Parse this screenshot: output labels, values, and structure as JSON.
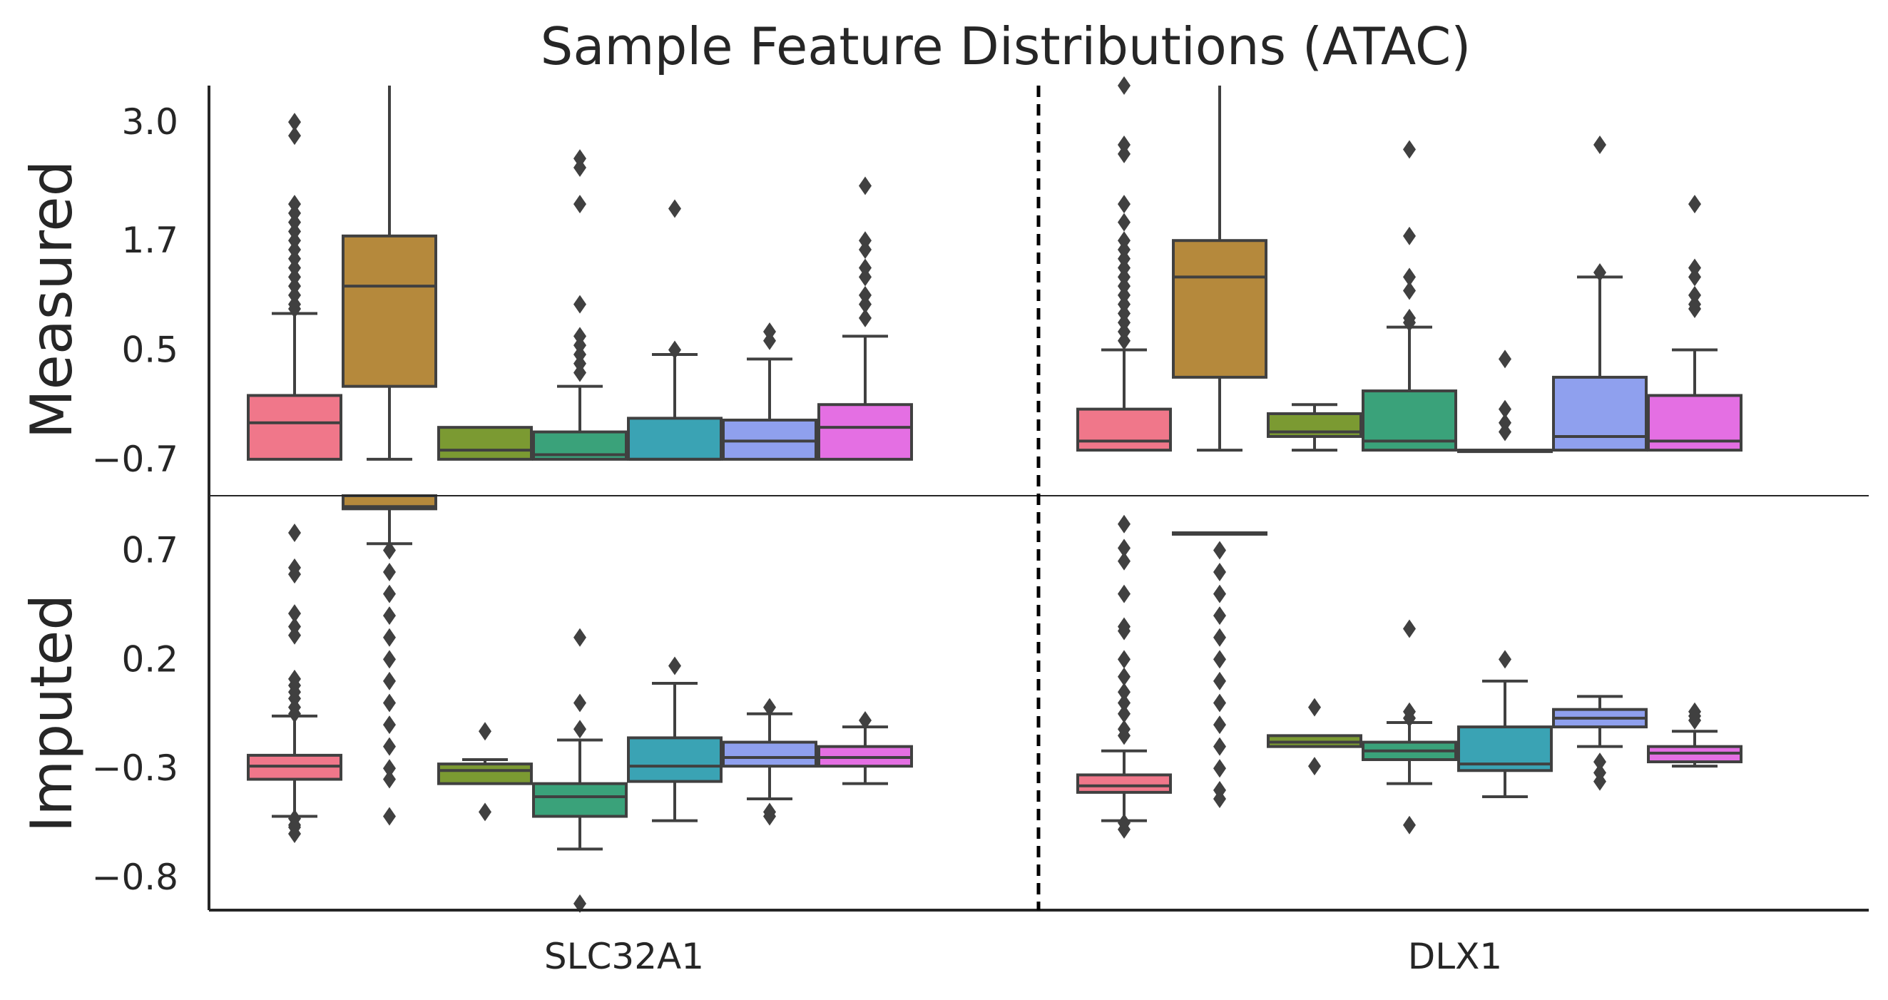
{
  "chart_data": {
    "type": "box",
    "title": "Sample Feature Distributions (ATAC)",
    "xlabel": "",
    "ylabel": "",
    "categories": [
      "SLC32A1",
      "DLX1"
    ],
    "series_colors": [
      "#f0778a",
      "#b5893c",
      "#7b9a32",
      "#3aa27a",
      "#3aa3b4",
      "#8fa0ee",
      "#e46fe3"
    ],
    "panels": [
      {
        "name": "Measured",
        "ylim": [
          -1.1,
          3.4
        ],
        "yticks": [
          "3.0",
          "1.7",
          "0.5",
          "−0.7"
        ],
        "ytick_values": [
          3.0,
          1.7,
          0.5,
          -0.7
        ],
        "groups": [
          [
            {
              "q1": -0.7,
              "median": -0.3,
              "q3": 0.0,
              "whisker_low": -0.7,
              "whisker_high": 0.9,
              "outliers": [
                2.85,
                3.0,
                2.1,
                2.0,
                1.9,
                1.8,
                1.7,
                1.6,
                1.5,
                1.4,
                1.3,
                1.2,
                1.1,
                1.0,
                0.95
              ]
            },
            {
              "q1": 0.1,
              "median": 1.2,
              "q3": 1.75,
              "whisker_low": -0.7,
              "whisker_high": 3.4,
              "outliers": []
            },
            {
              "q1": -0.7,
              "median": -0.6,
              "q3": -0.35,
              "whisker_low": -0.7,
              "whisker_high": -0.35,
              "outliers": []
            },
            {
              "q1": -0.7,
              "median": -0.65,
              "q3": -0.4,
              "whisker_low": -0.7,
              "whisker_high": 0.1,
              "outliers": [
                2.6,
                2.5,
                2.1,
                1.0,
                0.65,
                0.55,
                0.45,
                0.35,
                0.25
              ]
            },
            {
              "q1": -0.7,
              "median": -0.7,
              "q3": -0.25,
              "whisker_low": -0.7,
              "whisker_high": 0.45,
              "outliers": [
                2.05,
                0.5
              ]
            },
            {
              "q1": -0.7,
              "median": -0.5,
              "q3": -0.27,
              "whisker_low": -0.7,
              "whisker_high": 0.4,
              "outliers": [
                0.7,
                0.6
              ]
            },
            {
              "q1": -0.7,
              "median": -0.35,
              "q3": -0.1,
              "whisker_low": -0.7,
              "whisker_high": 0.65,
              "outliers": [
                2.3,
                1.7,
                1.6,
                1.4,
                1.3,
                1.1,
                1.0,
                0.85
              ]
            }
          ],
          [
            {
              "q1": -0.6,
              "median": -0.5,
              "q3": -0.15,
              "whisker_low": -0.6,
              "whisker_high": 0.5,
              "outliers": [
                3.4,
                2.75,
                2.65,
                2.1,
                1.9,
                1.7,
                1.6,
                1.5,
                1.4,
                1.3,
                1.2,
                1.1,
                1.0,
                0.9,
                0.8,
                0.7,
                0.6
              ]
            },
            {
              "q1": 0.2,
              "median": 1.3,
              "q3": 1.7,
              "whisker_low": -0.6,
              "whisker_high": 3.4,
              "outliers": []
            },
            {
              "q1": -0.45,
              "median": -0.4,
              "q3": -0.2,
              "whisker_low": -0.6,
              "whisker_high": -0.1,
              "outliers": []
            },
            {
              "q1": -0.6,
              "median": -0.5,
              "q3": 0.05,
              "whisker_low": -0.6,
              "whisker_high": 0.75,
              "outliers": [
                2.7,
                1.75,
                1.3,
                1.15,
                0.85,
                0.8
              ]
            },
            {
              "q1": -0.6,
              "median": -0.6,
              "q3": -0.6,
              "whisker_low": -0.6,
              "whisker_high": -0.6,
              "outliers": [
                0.4,
                -0.15,
                -0.3,
                -0.4
              ]
            },
            {
              "q1": -0.6,
              "median": -0.45,
              "q3": 0.2,
              "whisker_low": -0.6,
              "whisker_high": 1.3,
              "outliers": [
                2.75,
                1.35
              ]
            },
            {
              "q1": -0.6,
              "median": -0.5,
              "q3": 0.0,
              "whisker_low": -0.6,
              "whisker_high": 0.5,
              "outliers": [
                2.1,
                1.4,
                1.3,
                1.1,
                1.0,
                0.95
              ]
            }
          ]
        ]
      },
      {
        "name": "Imputed",
        "ylim": [
          -0.95,
          0.95
        ],
        "yticks": [
          "0.7",
          "0.2",
          "−0.3",
          "−0.8"
        ],
        "ytick_values": [
          0.7,
          0.2,
          -0.3,
          -0.8
        ],
        "groups": [
          [
            {
              "q1": -0.35,
              "median": -0.29,
              "q3": -0.24,
              "whisker_low": -0.52,
              "whisker_high": -0.06,
              "outliers": [
                0.78,
                0.62,
                0.59,
                0.41,
                0.35,
                0.31,
                0.11,
                0.08,
                0.05,
                0.02,
                -0.02,
                -0.05,
                -0.53,
                -0.56,
                -0.57,
                -0.6
              ]
            },
            {
              "q1": 0.89,
              "median": 0.9,
              "q3": 0.95,
              "whisker_low": 0.73,
              "whisker_high": 0.95,
              "outliers": [
                0.7,
                0.6,
                0.5,
                0.4,
                0.3,
                0.2,
                0.1,
                0.0,
                -0.1,
                -0.2,
                -0.3,
                -0.35,
                -0.52
              ]
            },
            {
              "q1": -0.37,
              "median": -0.31,
              "q3": -0.28,
              "whisker_low": -0.37,
              "whisker_high": -0.26,
              "outliers": [
                -0.13,
                -0.5
              ]
            },
            {
              "q1": -0.52,
              "median": -0.43,
              "q3": -0.37,
              "whisker_low": -0.67,
              "whisker_high": -0.17,
              "outliers": [
                0.3,
                0.0,
                -0.12,
                -0.92
              ]
            },
            {
              "q1": -0.36,
              "median": -0.29,
              "q3": -0.16,
              "whisker_low": -0.54,
              "whisker_high": 0.09,
              "outliers": [
                0.17
              ]
            },
            {
              "q1": -0.29,
              "median": -0.25,
              "q3": -0.18,
              "whisker_low": -0.44,
              "whisker_high": -0.05,
              "outliers": [
                -0.02,
                -0.5,
                -0.52
              ]
            },
            {
              "q1": -0.29,
              "median": -0.25,
              "q3": -0.2,
              "whisker_low": -0.37,
              "whisker_high": -0.11,
              "outliers": [
                -0.08
              ]
            }
          ],
          [
            {
              "q1": -0.41,
              "median": -0.38,
              "q3": -0.33,
              "whisker_low": -0.54,
              "whisker_high": -0.22,
              "outliers": [
                0.82,
                0.71,
                0.65,
                0.5,
                0.35,
                0.33,
                0.2,
                0.12,
                0.05,
                0.0,
                -0.05,
                -0.12,
                -0.15,
                -0.55,
                -0.58
              ]
            },
            {
              "q1": 0.78,
              "median": 0.78,
              "q3": 0.78,
              "whisker_low": 0.78,
              "whisker_high": 0.78,
              "outliers": [
                0.7,
                0.6,
                0.5,
                0.4,
                0.3,
                0.2,
                0.1,
                0.0,
                -0.1,
                -0.2,
                -0.3,
                -0.4,
                -0.44
              ]
            },
            {
              "q1": -0.2,
              "median": -0.18,
              "q3": -0.15,
              "whisker_low": -0.2,
              "whisker_high": -0.15,
              "outliers": [
                -0.02,
                -0.29
              ]
            },
            {
              "q1": -0.26,
              "median": -0.22,
              "q3": -0.18,
              "whisker_low": -0.37,
              "whisker_high": -0.09,
              "outliers": [
                0.34,
                -0.04,
                -0.07,
                -0.56
              ]
            },
            {
              "q1": -0.31,
              "median": -0.28,
              "q3": -0.11,
              "whisker_low": -0.43,
              "whisker_high": 0.1,
              "outliers": [
                0.2
              ]
            },
            {
              "q1": -0.11,
              "median": -0.07,
              "q3": -0.03,
              "whisker_low": -0.2,
              "whisker_high": 0.03,
              "outliers": [
                -0.27,
                -0.32,
                -0.36
              ]
            },
            {
              "q1": -0.27,
              "median": -0.23,
              "q3": -0.2,
              "whisker_low": -0.29,
              "whisker_high": -0.13,
              "outliers": [
                -0.04,
                -0.06,
                -0.08
              ]
            }
          ]
        ]
      }
    ]
  }
}
